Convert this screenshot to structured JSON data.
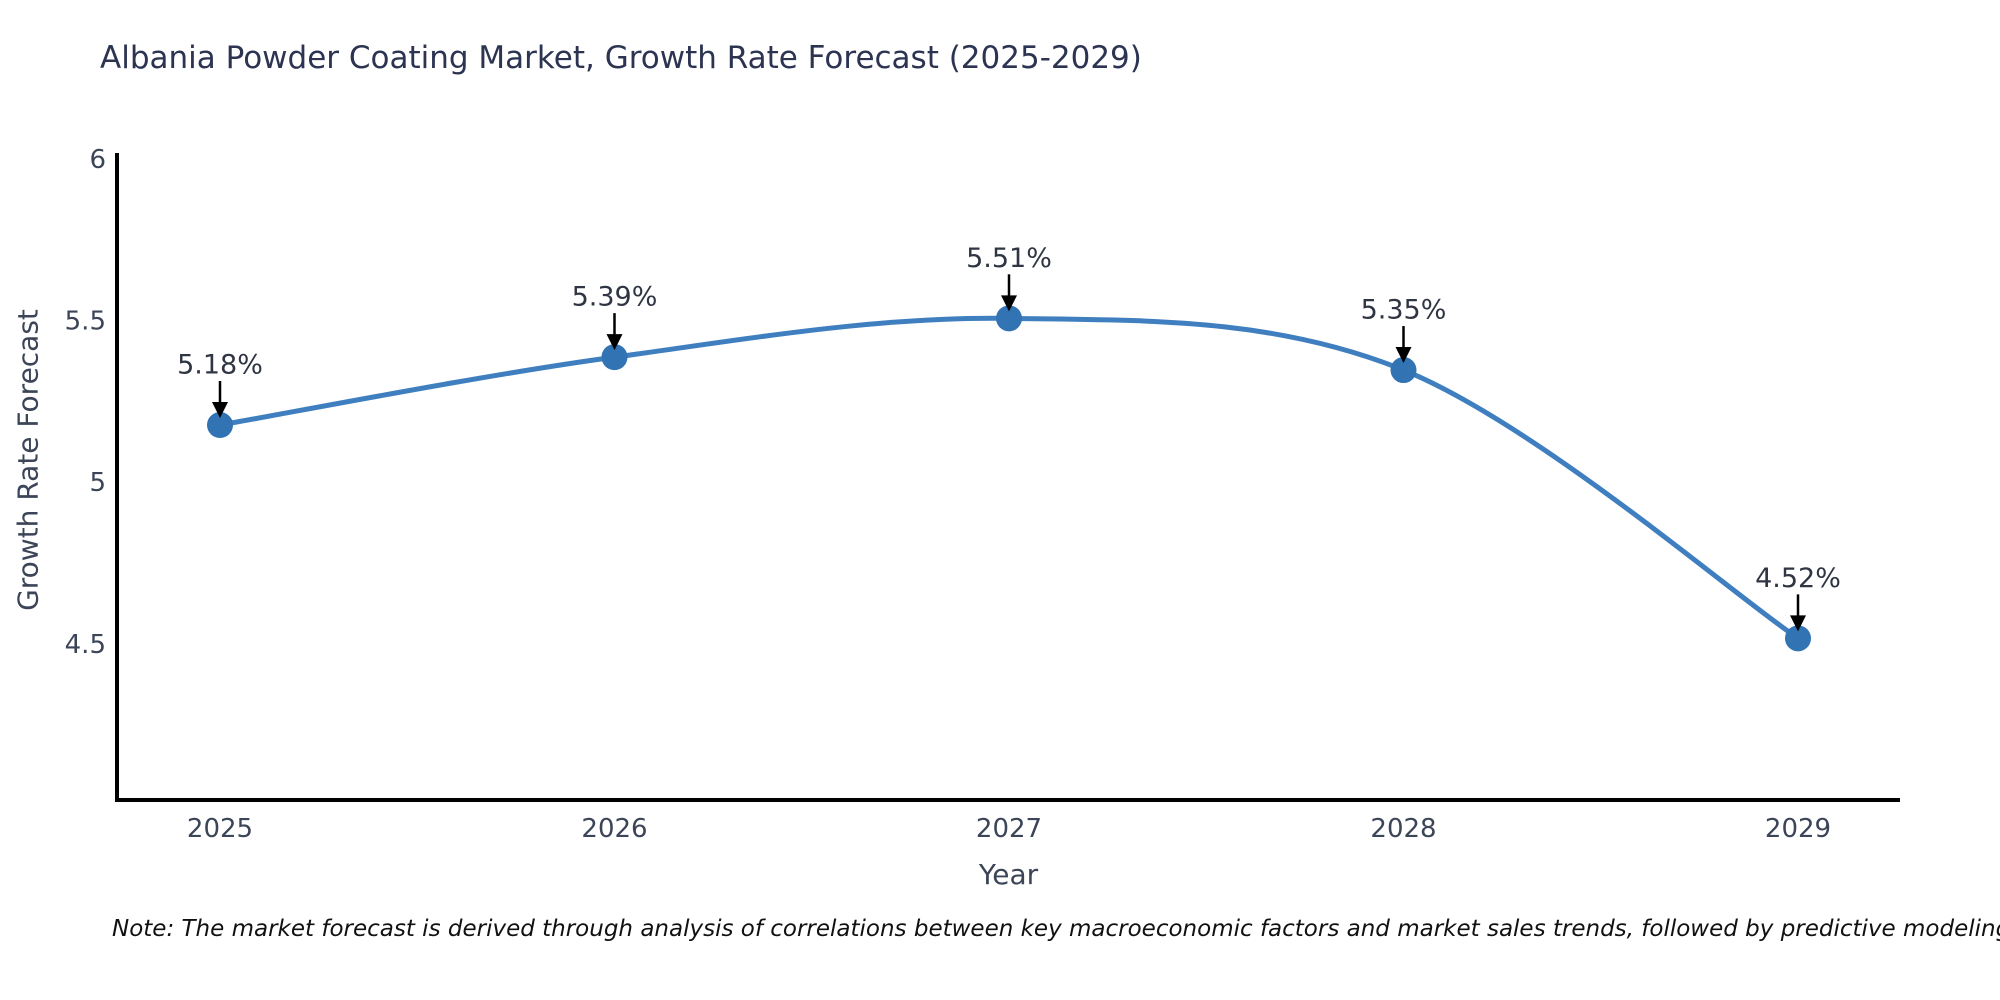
{
  "title": "Albania Powder Coating Market, Growth Rate Forecast (2025-2029)",
  "note": "Note: The market forecast is derived through analysis of correlations between key macroeconomic factors and market sales trends, followed by predictive modeling to project future sales",
  "chart_data": {
    "type": "line",
    "x": [
      2025,
      2026,
      2027,
      2028,
      2029
    ],
    "values": [
      5.18,
      5.39,
      5.51,
      5.35,
      4.52
    ],
    "point_labels": [
      "5.18%",
      "5.39%",
      "5.51%",
      "5.35%",
      "4.52%"
    ],
    "title": "Albania Powder Coating Market, Growth Rate Forecast (2025-2029)",
    "xlabel": "Year",
    "ylabel": "Growth Rate Forecast",
    "yticks": [
      6,
      5.5,
      5,
      4.5
    ],
    "ylim": [
      4.02,
      6.04
    ],
    "line_shape": "spline",
    "grid": false,
    "legend": "none",
    "markers": true,
    "annotations": "value labels with downward black arrows above each point",
    "colors": {
      "line": "#3f7fbf",
      "marker": "#3273b3",
      "arrow": "#000000",
      "axis": "#000000",
      "title_text": "#2c3452",
      "tick_text": "#3c4558",
      "label_text": "#2f3542"
    }
  }
}
